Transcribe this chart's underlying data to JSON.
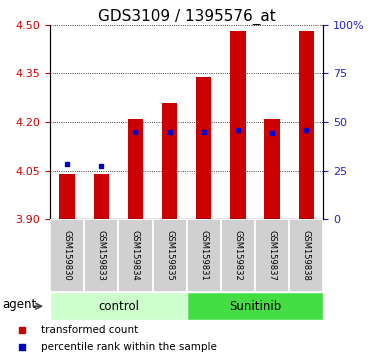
{
  "title": "GDS3109 / 1395576_at",
  "samples": [
    "GSM159830",
    "GSM159833",
    "GSM159834",
    "GSM159835",
    "GSM159831",
    "GSM159832",
    "GSM159837",
    "GSM159838"
  ],
  "groups": [
    "control",
    "control",
    "control",
    "control",
    "Sunitinib",
    "Sunitinib",
    "Sunitinib",
    "Sunitinib"
  ],
  "bar_bottoms": [
    3.9,
    3.9,
    3.9,
    3.9,
    3.9,
    3.9,
    3.9,
    3.9
  ],
  "bar_tops": [
    4.04,
    4.04,
    4.21,
    4.26,
    4.34,
    4.48,
    4.21,
    4.48
  ],
  "percentile_values": [
    4.07,
    4.065,
    4.17,
    4.17,
    4.17,
    4.175,
    4.165,
    4.175
  ],
  "ylim": [
    3.9,
    4.5
  ],
  "yticks_left": [
    3.9,
    4.05,
    4.2,
    4.35,
    4.5
  ],
  "yticks_right": [
    0,
    25,
    50,
    75,
    100
  ],
  "bar_color": "#cc0000",
  "percentile_color": "#0000cc",
  "control_bg": "#ccffcc",
  "sunitinib_bg": "#44dd44",
  "group_label_control": "control",
  "group_label_sunitinib": "Sunitinib",
  "agent_label": "agent",
  "left_tick_color": "#cc0000",
  "right_tick_color": "#2222cc",
  "legend_tc": "transformed count",
  "legend_pr": "percentile rank within the sample",
  "bar_width": 0.45,
  "title_fontsize": 11,
  "tick_fontsize": 8,
  "sample_fontsize": 6,
  "group_fontsize": 8.5,
  "legend_fontsize": 7.5
}
